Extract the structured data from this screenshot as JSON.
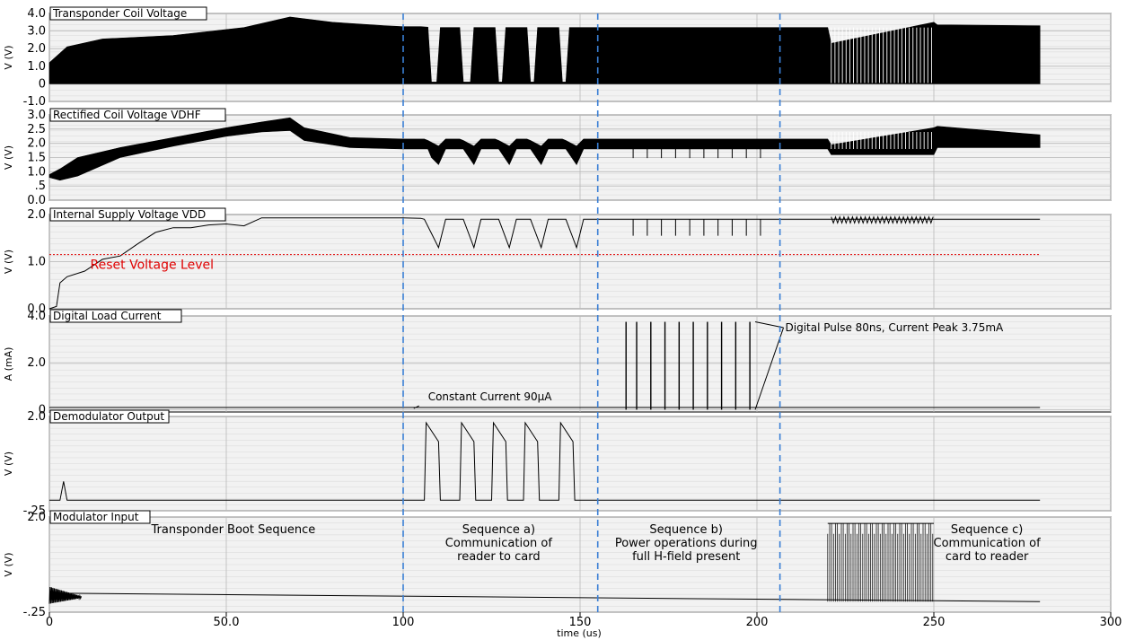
{
  "chart_data": {
    "type": "line",
    "xlabel": "time (us)",
    "xlim": [
      0,
      300
    ],
    "xticks": [
      {
        "v": 0,
        "label": "0"
      },
      {
        "v": 50,
        "label": "50.0"
      },
      {
        "v": 100,
        "label": "100"
      },
      {
        "v": 150,
        "label": "150"
      },
      {
        "v": 200,
        "label": "200"
      },
      {
        "v": 250,
        "label": "250"
      },
      {
        "v": 300,
        "label": "300"
      }
    ],
    "markers_us": [
      100,
      155,
      206.5
    ],
    "panels": [
      {
        "title": "Transponder Coil Voltage",
        "ylabel": "V (V)",
        "ylim": [
          -1.0,
          4.0
        ],
        "yticks": [
          {
            "v": -1.0,
            "label": "-1.0"
          },
          {
            "v": 0,
            "label": "0"
          },
          {
            "v": 1.0,
            "label": "1.0"
          },
          {
            "v": 2.0,
            "label": "2.0"
          },
          {
            "v": 3.0,
            "label": "3.0"
          },
          {
            "v": 4.0,
            "label": "4.0"
          }
        ],
        "kind": "envelope",
        "bottom": [
          [
            0,
            0
          ],
          [
            280,
            0
          ]
        ],
        "top": [
          [
            0,
            1.2
          ],
          [
            5,
            2.1
          ],
          [
            15,
            2.55
          ],
          [
            35,
            2.75
          ],
          [
            55,
            3.2
          ],
          [
            68,
            3.8
          ],
          [
            80,
            3.5
          ],
          [
            95,
            3.3
          ],
          [
            100,
            3.25
          ],
          [
            105,
            3.25
          ],
          [
            107,
            3.22
          ],
          [
            108,
            0.1
          ],
          [
            109.5,
            0.1
          ],
          [
            110.5,
            3.2
          ],
          [
            115,
            3.2
          ],
          [
            116,
            3.2
          ],
          [
            117,
            0.1
          ],
          [
            119,
            0.1
          ],
          [
            120,
            3.2
          ],
          [
            125,
            3.2
          ],
          [
            126,
            3.2
          ],
          [
            127,
            0.1
          ],
          [
            128,
            0.1
          ],
          [
            129,
            3.2
          ],
          [
            134,
            3.2
          ],
          [
            135,
            3.2
          ],
          [
            136,
            0.1
          ],
          [
            137,
            0.1
          ],
          [
            138,
            3.2
          ],
          [
            143,
            3.2
          ],
          [
            144,
            3.2
          ],
          [
            145,
            0.1
          ],
          [
            146,
            0.1
          ],
          [
            147,
            3.2
          ],
          [
            150,
            3.2
          ],
          [
            200,
            3.2
          ],
          [
            220,
            3.2
          ],
          [
            221,
            2.3
          ],
          [
            250,
            3.5
          ],
          [
            251,
            3.35
          ],
          [
            280,
            3.3
          ]
        ]
      },
      {
        "title": "Rectified Coil Voltage VDHF",
        "ylabel": "V (V)",
        "ylim": [
          0.0,
          3.0
        ],
        "yticks": [
          {
            "v": 0.0,
            "label": "0.0"
          },
          {
            "v": 0.5,
            "label": ".5"
          },
          {
            "v": 1.0,
            "label": "1.0"
          },
          {
            "v": 1.5,
            "label": "1.5"
          },
          {
            "v": 2.0,
            "label": "2.0"
          },
          {
            "v": 2.5,
            "label": "2.5"
          },
          {
            "v": 3.0,
            "label": "3.0"
          }
        ],
        "kind": "envelope",
        "bottom": [
          [
            0,
            0.8
          ],
          [
            3,
            0.7
          ],
          [
            8,
            0.85
          ],
          [
            20,
            1.5
          ],
          [
            35,
            1.9
          ],
          [
            50,
            2.25
          ],
          [
            60,
            2.4
          ],
          [
            68,
            2.45
          ],
          [
            72,
            2.1
          ],
          [
            85,
            1.85
          ],
          [
            100,
            1.8
          ],
          [
            106,
            1.8
          ],
          [
            107,
            1.8
          ],
          [
            108,
            1.5
          ],
          [
            110,
            1.25
          ],
          [
            112,
            1.8
          ],
          [
            116,
            1.8
          ],
          [
            117,
            1.8
          ],
          [
            120,
            1.25
          ],
          [
            122,
            1.8
          ],
          [
            126,
            1.8
          ],
          [
            127,
            1.8
          ],
          [
            130,
            1.25
          ],
          [
            132,
            1.8
          ],
          [
            135,
            1.8
          ],
          [
            136,
            1.8
          ],
          [
            139,
            1.25
          ],
          [
            141,
            1.8
          ],
          [
            145,
            1.8
          ],
          [
            146,
            1.8
          ],
          [
            149,
            1.25
          ],
          [
            151,
            1.8
          ],
          [
            220,
            1.8
          ],
          [
            221,
            1.6
          ],
          [
            250,
            1.6
          ],
          [
            251,
            1.85
          ],
          [
            280,
            1.85
          ]
        ],
        "top": [
          [
            0,
            0.9
          ],
          [
            3,
            1.1
          ],
          [
            8,
            1.5
          ],
          [
            20,
            1.85
          ],
          [
            35,
            2.2
          ],
          [
            50,
            2.55
          ],
          [
            60,
            2.75
          ],
          [
            68,
            2.9
          ],
          [
            72,
            2.55
          ],
          [
            85,
            2.2
          ],
          [
            100,
            2.15
          ],
          [
            106,
            2.15
          ],
          [
            107,
            2.1
          ],
          [
            110,
            1.9
          ],
          [
            112,
            2.15
          ],
          [
            116,
            2.15
          ],
          [
            117,
            2.1
          ],
          [
            120,
            1.9
          ],
          [
            122,
            2.15
          ],
          [
            126,
            2.15
          ],
          [
            127,
            2.1
          ],
          [
            130,
            1.9
          ],
          [
            132,
            2.15
          ],
          [
            135,
            2.15
          ],
          [
            136,
            2.1
          ],
          [
            139,
            1.9
          ],
          [
            141,
            2.15
          ],
          [
            145,
            2.15
          ],
          [
            146,
            2.1
          ],
          [
            149,
            1.9
          ],
          [
            151,
            2.15
          ],
          [
            220,
            2.15
          ],
          [
            221,
            1.95
          ],
          [
            250,
            2.55
          ],
          [
            251,
            2.6
          ],
          [
            280,
            2.3
          ]
        ]
      },
      {
        "title": "Internal Supply Voltage VDD",
        "ylabel": "V (V)",
        "ylim": [
          0.0,
          2.0
        ],
        "yticks": [
          {
            "v": 0.0,
            "label": "0.0"
          },
          {
            "v": 1.0,
            "label": "1.0"
          },
          {
            "v": 2.0,
            "label": "2.0"
          }
        ],
        "kind": "line",
        "points": [
          [
            0,
            0
          ],
          [
            2,
            0.05
          ],
          [
            3,
            0.55
          ],
          [
            5,
            0.68
          ],
          [
            10,
            0.8
          ],
          [
            12,
            0.9
          ],
          [
            15,
            1.05
          ],
          [
            20,
            1.12
          ],
          [
            25,
            1.38
          ],
          [
            30,
            1.62
          ],
          [
            35,
            1.72
          ],
          [
            40,
            1.72
          ],
          [
            45,
            1.78
          ],
          [
            50,
            1.8
          ],
          [
            55,
            1.76
          ],
          [
            60,
            1.93
          ],
          [
            100,
            1.93
          ],
          [
            105,
            1.92
          ],
          [
            106,
            1.9
          ],
          [
            108,
            1.6
          ],
          [
            110,
            1.3
          ],
          [
            112,
            1.9
          ],
          [
            116,
            1.9
          ],
          [
            117,
            1.9
          ],
          [
            120,
            1.3
          ],
          [
            122,
            1.9
          ],
          [
            126,
            1.9
          ],
          [
            127,
            1.9
          ],
          [
            130,
            1.3
          ],
          [
            132,
            1.9
          ],
          [
            135,
            1.9
          ],
          [
            136,
            1.9
          ],
          [
            139,
            1.3
          ],
          [
            141,
            1.9
          ],
          [
            145,
            1.9
          ],
          [
            146,
            1.9
          ],
          [
            149,
            1.3
          ],
          [
            151,
            1.9
          ],
          [
            165,
            1.9
          ],
          [
            220,
            1.9
          ],
          [
            280,
            1.9
          ]
        ],
        "reference_line": {
          "value": 1.15,
          "label": "Reset Voltage Level",
          "color": "#e00000"
        },
        "spikes": {
          "times": [
            165,
            169,
            173,
            177,
            181,
            185,
            189,
            193,
            197,
            201
          ],
          "low": 1.55,
          "high": 1.9
        }
      },
      {
        "title": "Digital Load Current",
        "ylabel": "A (mA)",
        "ylim": [
          -0.1,
          4.0
        ],
        "yticks": [
          {
            "v": 0,
            "label": "0"
          },
          {
            "v": 2.0,
            "label": "2.0"
          },
          {
            "v": 4.0,
            "label": "4.0"
          }
        ],
        "kind": "line",
        "points": [
          [
            0,
            0.09
          ],
          [
            280,
            0.09
          ]
        ],
        "pulses": {
          "times": [
            163,
            166,
            170,
            174,
            178,
            182,
            186,
            190,
            194,
            198
          ],
          "high": 3.75
        },
        "annotations": [
          {
            "text": "Constant Current 90µA",
            "x": 105,
            "y": 0.09
          },
          {
            "text": "Digital Pulse 80ns, Current Peak 3.75mA",
            "x": 200,
            "y": 3.75
          }
        ]
      },
      {
        "title": "Demodulator Output",
        "ylabel": "V (V)",
        "ylim": [
          -0.25,
          2.0
        ],
        "yticks": [
          {
            "v": -0.25,
            "label": "-.25"
          },
          {
            "v": 2.0,
            "label": "2.0"
          }
        ],
        "kind": "line",
        "points": [
          [
            0,
            0
          ],
          [
            3,
            0
          ],
          [
            4,
            0.45
          ],
          [
            5,
            0
          ],
          [
            106,
            0
          ],
          [
            106.5,
            1.85
          ],
          [
            110,
            1.4
          ],
          [
            110.5,
            0
          ],
          [
            116,
            0
          ],
          [
            116.5,
            1.85
          ],
          [
            120,
            1.4
          ],
          [
            120.5,
            0
          ],
          [
            125,
            0
          ],
          [
            125.5,
            1.85
          ],
          [
            129,
            1.4
          ],
          [
            129.5,
            0
          ],
          [
            134,
            0
          ],
          [
            134.5,
            1.85
          ],
          [
            138,
            1.4
          ],
          [
            138.5,
            0
          ],
          [
            144,
            0
          ],
          [
            144.5,
            1.85
          ],
          [
            148,
            1.4
          ],
          [
            148.5,
            0
          ],
          [
            280,
            0
          ]
        ]
      },
      {
        "title": "Modulator Input",
        "ylabel": "V (V)",
        "ylim": [
          -0.25,
          2.0
        ],
        "yticks": [
          {
            "v": -0.25,
            "label": "-.25"
          },
          {
            "v": 2.0,
            "label": "2.0"
          }
        ],
        "kind": "line",
        "points": [
          [
            0,
            0.2
          ],
          [
            280,
            0.0
          ]
        ],
        "burst": {
          "start": 220,
          "end": 250,
          "low": 0.0,
          "high": 1.85
        },
        "boot_noise": {
          "start": 0,
          "end": 9,
          "amp": 0.25
        }
      }
    ],
    "sequence_labels": [
      {
        "lines": [
          "Transponder Boot Sequence"
        ],
        "x": 52
      },
      {
        "lines": [
          "Sequence a)",
          "Communication of",
          "reader to card"
        ],
        "x": 127
      },
      {
        "lines": [
          "Sequence b)",
          "Power operations during",
          "full H-field present"
        ],
        "x": 180
      },
      {
        "lines": [
          "Sequence c)",
          "Communication of",
          "card to reader"
        ],
        "x": 265
      }
    ]
  }
}
